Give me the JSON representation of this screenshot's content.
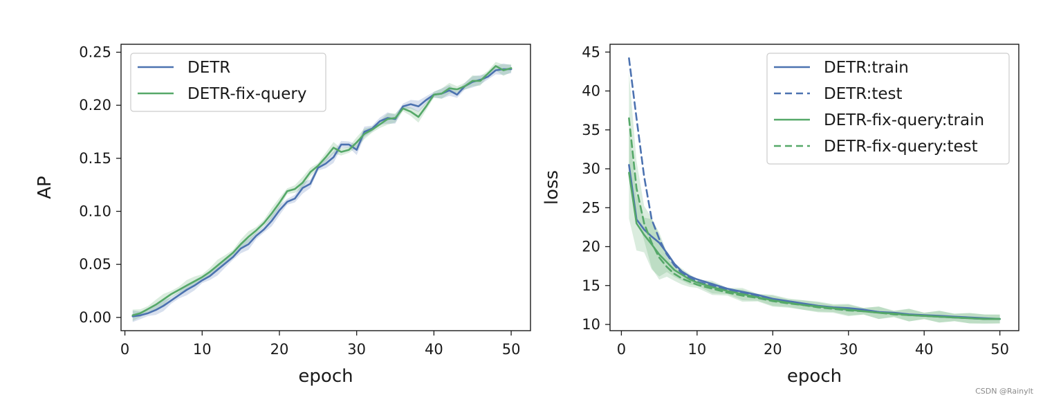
{
  "watermark": "CSDN @Rainylt",
  "colors": {
    "detr": "#4c72b0",
    "fix": "#55a868"
  },
  "chart_data": [
    {
      "type": "line",
      "title": "",
      "xlabel": "epoch",
      "ylabel": "AP",
      "xlim": [
        -0.5,
        52.5
      ],
      "ylim": [
        -0.0125,
        0.2575
      ],
      "xticks": [
        0,
        10,
        20,
        30,
        40,
        50
      ],
      "xtick_labels": [
        "0",
        "10",
        "20",
        "30",
        "40",
        "50"
      ],
      "yticks": [
        0.0,
        0.05,
        0.1,
        0.15,
        0.2,
        0.25
      ],
      "ytick_labels": [
        "0.00",
        "0.05",
        "0.10",
        "0.15",
        "0.20",
        "0.25"
      ],
      "legend": {
        "placement": "upper-left"
      },
      "series": [
        {
          "name": "DETR",
          "style": "solid",
          "color": "#4c72b0",
          "band": true,
          "x": [
            1,
            2,
            3,
            4,
            5,
            6,
            7,
            8,
            9,
            10,
            11,
            12,
            13,
            14,
            15,
            16,
            17,
            18,
            19,
            20,
            21,
            22,
            23,
            24,
            25,
            26,
            27,
            28,
            29,
            30,
            31,
            32,
            33,
            34,
            35,
            36,
            37,
            38,
            39,
            40,
            41,
            42,
            43,
            44,
            45,
            46,
            47,
            48,
            49,
            50
          ],
          "y": [
            0.001,
            0.002,
            0.004,
            0.007,
            0.011,
            0.016,
            0.021,
            0.026,
            0.03,
            0.035,
            0.039,
            0.045,
            0.051,
            0.057,
            0.065,
            0.069,
            0.077,
            0.083,
            0.091,
            0.101,
            0.109,
            0.112,
            0.122,
            0.126,
            0.141,
            0.145,
            0.151,
            0.163,
            0.163,
            0.158,
            0.175,
            0.178,
            0.185,
            0.188,
            0.187,
            0.199,
            0.201,
            0.199,
            0.205,
            0.21,
            0.211,
            0.214,
            0.21,
            0.218,
            0.222,
            0.224,
            0.227,
            0.233,
            0.234,
            0.234
          ]
        },
        {
          "name": "DETR-fix-query",
          "style": "solid",
          "color": "#55a868",
          "band": true,
          "x": [
            1,
            2,
            3,
            4,
            5,
            6,
            7,
            8,
            9,
            10,
            11,
            12,
            13,
            14,
            15,
            16,
            17,
            18,
            19,
            20,
            21,
            22,
            23,
            24,
            25,
            26,
            27,
            28,
            29,
            30,
            31,
            32,
            33,
            34,
            35,
            36,
            37,
            38,
            39,
            40,
            41,
            42,
            43,
            44,
            45,
            46,
            47,
            48,
            49,
            50
          ],
          "y": [
            0.002,
            0.004,
            0.008,
            0.012,
            0.017,
            0.022,
            0.026,
            0.03,
            0.034,
            0.038,
            0.043,
            0.049,
            0.055,
            0.061,
            0.069,
            0.076,
            0.082,
            0.089,
            0.098,
            0.108,
            0.119,
            0.121,
            0.127,
            0.137,
            0.143,
            0.151,
            0.16,
            0.156,
            0.158,
            0.165,
            0.173,
            0.177,
            0.182,
            0.187,
            0.188,
            0.197,
            0.194,
            0.189,
            0.199,
            0.21,
            0.211,
            0.216,
            0.215,
            0.218,
            0.223,
            0.223,
            0.23,
            0.237,
            0.233,
            0.235
          ]
        }
      ]
    },
    {
      "type": "line",
      "title": "",
      "xlabel": "epoch",
      "ylabel": "loss",
      "xlim": [
        -1.5,
        52.5
      ],
      "ylim": [
        9.2,
        46.0
      ],
      "xticks": [
        0,
        10,
        20,
        30,
        40,
        50
      ],
      "xtick_labels": [
        "0",
        "10",
        "20",
        "30",
        "40",
        "50"
      ],
      "yticks": [
        10,
        15,
        20,
        25,
        30,
        35,
        40,
        45
      ],
      "ytick_labels": [
        "10",
        "15",
        "20",
        "25",
        "30",
        "35",
        "40",
        "45"
      ],
      "legend": {
        "placement": "upper-right"
      },
      "series": [
        {
          "name": "DETR:train",
          "style": "solid",
          "color": "#4c72b0",
          "band": false,
          "x": [
            1,
            2,
            3,
            4,
            5,
            6,
            7,
            8,
            9,
            10,
            12,
            14,
            16,
            18,
            20,
            22,
            24,
            26,
            28,
            30,
            32,
            34,
            36,
            38,
            40,
            42,
            44,
            46,
            48,
            50
          ],
          "y": [
            30.5,
            23.5,
            22.2,
            21.3,
            20.5,
            19.2,
            17.8,
            16.8,
            16.2,
            15.8,
            15.2,
            14.6,
            14.2,
            13.8,
            13.3,
            13.0,
            12.7,
            12.4,
            12.2,
            12.1,
            11.9,
            11.6,
            11.5,
            11.3,
            11.2,
            11.1,
            11.0,
            10.9,
            10.8,
            10.7
          ]
        },
        {
          "name": "DETR:test",
          "style": "dashed",
          "color": "#4c72b0",
          "band": false,
          "x": [
            1,
            2,
            3,
            4,
            5,
            6,
            7,
            8,
            9,
            10,
            12,
            14,
            16,
            18,
            20,
            22,
            24,
            26,
            28,
            30,
            32,
            34,
            36,
            38,
            40,
            42,
            44,
            46,
            48,
            50
          ],
          "y": [
            44.2,
            36.5,
            29.0,
            23.5,
            21.0,
            19.0,
            17.6,
            16.6,
            16.0,
            15.5,
            15.0,
            14.4,
            14.0,
            13.6,
            13.2,
            12.9,
            12.6,
            12.3,
            12.1,
            11.9,
            11.8,
            11.6,
            11.4,
            11.2,
            11.1,
            11.0,
            10.9,
            10.8,
            10.7,
            10.7
          ]
        },
        {
          "name": "DETR-fix-query:train",
          "style": "solid",
          "color": "#55a868",
          "band": true,
          "x": [
            1,
            2,
            3,
            4,
            5,
            6,
            7,
            8,
            9,
            10,
            12,
            14,
            16,
            18,
            20,
            22,
            24,
            26,
            28,
            30,
            32,
            34,
            36,
            38,
            40,
            42,
            44,
            46,
            48,
            50
          ],
          "y": [
            29.5,
            23.0,
            21.5,
            20.3,
            19.0,
            18.0,
            17.0,
            16.4,
            15.8,
            15.4,
            14.8,
            14.3,
            13.9,
            13.5,
            13.1,
            12.8,
            12.5,
            12.3,
            12.1,
            11.9,
            11.7,
            11.5,
            11.4,
            11.2,
            11.1,
            11.0,
            10.9,
            10.8,
            10.7,
            10.7
          ]
        },
        {
          "name": "DETR-fix-query:test",
          "style": "dashed",
          "color": "#55a868",
          "band": true,
          "x": [
            1,
            2,
            3,
            4,
            5,
            6,
            7,
            8,
            9,
            10,
            12,
            14,
            16,
            18,
            20,
            22,
            24,
            26,
            28,
            30,
            32,
            34,
            36,
            38,
            40,
            42,
            44,
            46,
            48,
            50
          ],
          "y": [
            36.5,
            27.5,
            23.0,
            20.5,
            18.6,
            17.4,
            16.5,
            15.9,
            15.5,
            15.1,
            14.6,
            14.1,
            13.7,
            13.4,
            13.0,
            12.7,
            12.5,
            12.2,
            12.0,
            11.8,
            11.7,
            11.5,
            11.3,
            11.2,
            11.1,
            11.0,
            10.9,
            10.8,
            10.7,
            10.7
          ]
        }
      ]
    }
  ]
}
